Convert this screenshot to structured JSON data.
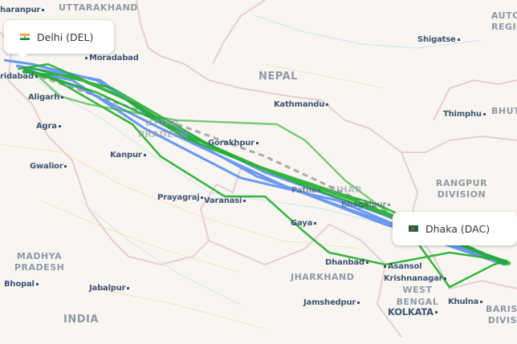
{
  "origin": {
    "label": "Delhi (DEL)",
    "flag": "india-flag"
  },
  "destination": {
    "label": "Dhaka (DAC)",
    "flag": "bangladesh-flag"
  },
  "colors": {
    "background": "#f9f6f1",
    "route_green": "#1fae2a",
    "route_blue": "#5b8ff0",
    "great_circle": "#a9a9a9",
    "border": "#e2c6c8"
  },
  "cities": [
    {
      "name": "haranpur"
    },
    {
      "name": "Moradabad"
    },
    {
      "name": "ridabad"
    },
    {
      "name": "Aligarh"
    },
    {
      "name": "Agra"
    },
    {
      "name": "Kanpur"
    },
    {
      "name": "Gwalior"
    },
    {
      "name": "Gorakhpur"
    },
    {
      "name": "Kathmandu"
    },
    {
      "name": "Shigatse"
    },
    {
      "name": "Thimphu"
    },
    {
      "name": "Prayagraj"
    },
    {
      "name": "Varanasi"
    },
    {
      "name": "Patna"
    },
    {
      "name": "Bhagalpur"
    },
    {
      "name": "Gaya"
    },
    {
      "name": "Dhanbad"
    },
    {
      "name": "Asansol"
    },
    {
      "name": "Krishnanagar"
    },
    {
      "name": "Jamshedpur"
    },
    {
      "name": "KOLKATA"
    },
    {
      "name": "Khulna"
    },
    {
      "name": "Bhopal"
    },
    {
      "name": "Jabalpur"
    }
  ],
  "regions": [
    {
      "name": "UTTARAKHAND"
    },
    {
      "name": "NEPAL"
    },
    {
      "name": "UTTAR PRADESH"
    },
    {
      "name": "BIHAR"
    },
    {
      "name": "RANGPUR DIVISION"
    },
    {
      "name": "JHARKHAND"
    },
    {
      "name": "WEST BENGAL"
    },
    {
      "name": "BARISHAL DIVISION"
    },
    {
      "name": "MADHYA PRADESH"
    },
    {
      "name": "INDIA"
    },
    {
      "name": "BHUTAN"
    },
    {
      "name": "AUTONOMOUS REGION"
    }
  ]
}
